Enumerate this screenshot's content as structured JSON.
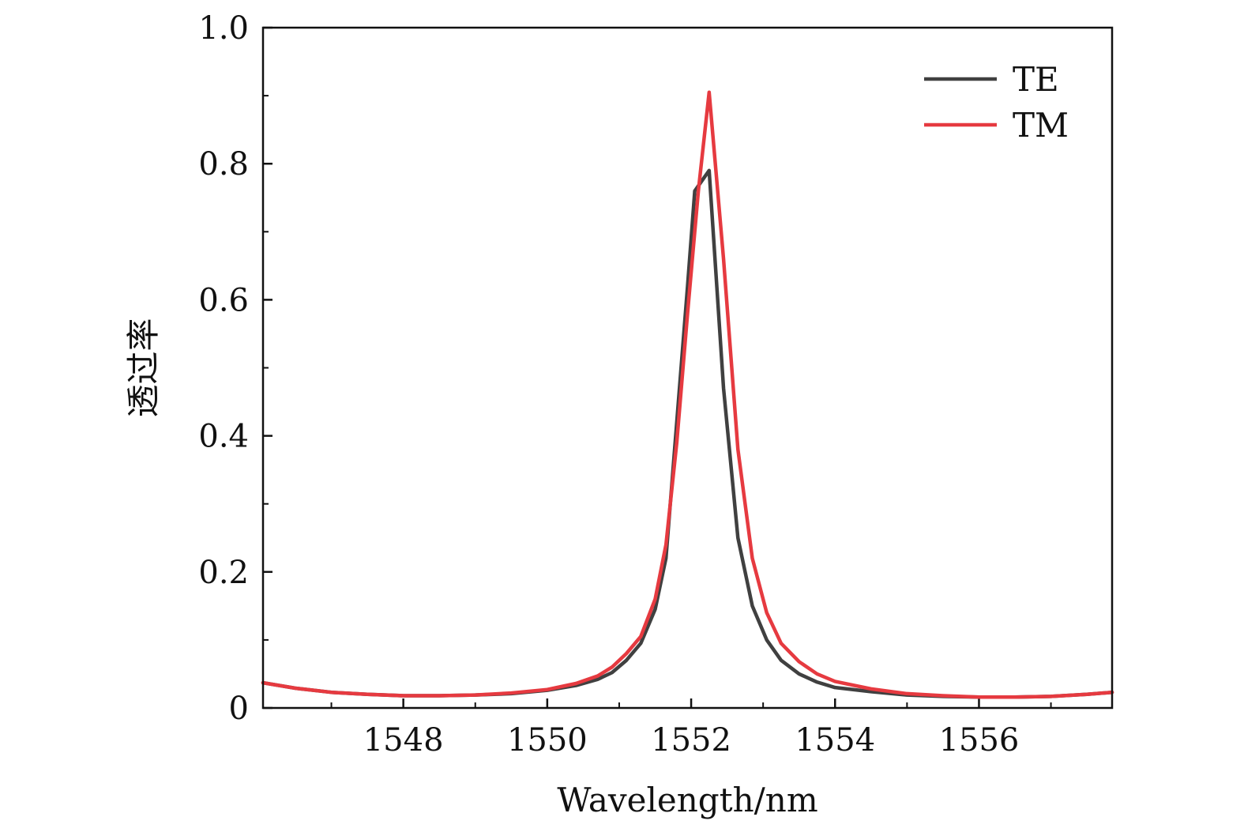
{
  "chart_data": {
    "type": "line",
    "xlabel": "Wavelength/nm",
    "ylabel": "透过率",
    "xlim": [
      1546.05,
      1557.85
    ],
    "ylim": [
      0,
      1.0
    ],
    "x_ticks": [
      1548,
      1550,
      1552,
      1554,
      1556
    ],
    "x_minor_ticks": [
      1547,
      1549,
      1551,
      1553,
      1555,
      1557
    ],
    "y_ticks": [
      0,
      0.2,
      0.4,
      0.6,
      0.8,
      1.0
    ],
    "y_tick_labels": [
      "0",
      "0.2",
      "0.4",
      "0.6",
      "0.8",
      "1.0"
    ],
    "y_minor_ticks": [
      0.1,
      0.3,
      0.5,
      0.7,
      0.9
    ],
    "grid": false,
    "legend_position": "top-right",
    "series": [
      {
        "name": "TE",
        "color": "#404040",
        "points": [
          [
            1546.05,
            0.037
          ],
          [
            1546.5,
            0.029
          ],
          [
            1547.0,
            0.023
          ],
          [
            1547.5,
            0.02
          ],
          [
            1548.0,
            0.018
          ],
          [
            1548.5,
            0.018
          ],
          [
            1549.0,
            0.019
          ],
          [
            1549.5,
            0.021
          ],
          [
            1550.0,
            0.026
          ],
          [
            1550.4,
            0.033
          ],
          [
            1550.7,
            0.042
          ],
          [
            1550.9,
            0.052
          ],
          [
            1551.1,
            0.07
          ],
          [
            1551.3,
            0.095
          ],
          [
            1551.5,
            0.145
          ],
          [
            1551.65,
            0.22
          ],
          [
            1551.8,
            0.42
          ],
          [
            1551.95,
            0.62
          ],
          [
            1552.05,
            0.76
          ],
          [
            1552.25,
            0.79
          ],
          [
            1552.45,
            0.47
          ],
          [
            1552.65,
            0.25
          ],
          [
            1552.85,
            0.15
          ],
          [
            1553.05,
            0.1
          ],
          [
            1553.25,
            0.07
          ],
          [
            1553.5,
            0.05
          ],
          [
            1553.75,
            0.038
          ],
          [
            1554.0,
            0.03
          ],
          [
            1554.5,
            0.024
          ],
          [
            1555.0,
            0.019
          ],
          [
            1555.5,
            0.017
          ],
          [
            1556.0,
            0.016
          ],
          [
            1556.5,
            0.016
          ],
          [
            1557.0,
            0.017
          ],
          [
            1557.5,
            0.02
          ],
          [
            1557.85,
            0.023
          ]
        ]
      },
      {
        "name": "TM",
        "color": "#e63a40",
        "points": [
          [
            1546.05,
            0.037
          ],
          [
            1546.5,
            0.029
          ],
          [
            1547.0,
            0.023
          ],
          [
            1547.5,
            0.02
          ],
          [
            1548.0,
            0.018
          ],
          [
            1548.5,
            0.018
          ],
          [
            1549.0,
            0.019
          ],
          [
            1549.5,
            0.022
          ],
          [
            1550.0,
            0.027
          ],
          [
            1550.4,
            0.036
          ],
          [
            1550.7,
            0.047
          ],
          [
            1550.9,
            0.06
          ],
          [
            1551.1,
            0.08
          ],
          [
            1551.3,
            0.105
          ],
          [
            1551.5,
            0.16
          ],
          [
            1551.65,
            0.24
          ],
          [
            1551.8,
            0.39
          ],
          [
            1551.95,
            0.58
          ],
          [
            1552.1,
            0.76
          ],
          [
            1552.25,
            0.905
          ],
          [
            1552.45,
            0.66
          ],
          [
            1552.65,
            0.38
          ],
          [
            1552.85,
            0.22
          ],
          [
            1553.05,
            0.14
          ],
          [
            1553.25,
            0.095
          ],
          [
            1553.5,
            0.068
          ],
          [
            1553.75,
            0.05
          ],
          [
            1554.0,
            0.039
          ],
          [
            1554.5,
            0.028
          ],
          [
            1555.0,
            0.021
          ],
          [
            1555.5,
            0.018
          ],
          [
            1556.0,
            0.016
          ],
          [
            1556.5,
            0.016
          ],
          [
            1557.0,
            0.017
          ],
          [
            1557.5,
            0.02
          ],
          [
            1557.85,
            0.023
          ]
        ]
      }
    ]
  }
}
